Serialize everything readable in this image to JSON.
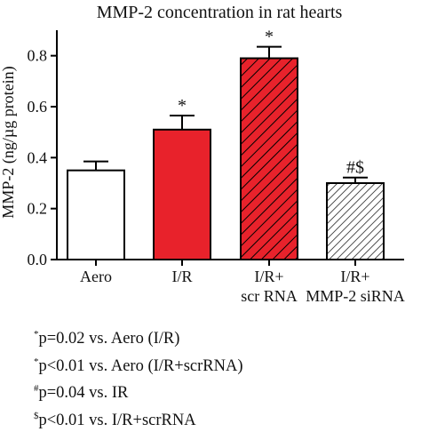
{
  "chart_data": {
    "type": "bar",
    "title": "MMP-2 concentration in rat hearts",
    "ylabel": "MMP-2 (ng/µg protein)",
    "xlabel": "",
    "ylim": [
      0,
      0.9
    ],
    "yticks": [
      "0.0",
      "0.2",
      "0.4",
      "0.6",
      "0.8"
    ],
    "categories": [
      [
        "Aero"
      ],
      [
        "I/R"
      ],
      [
        "I/R+",
        "scr RNA"
      ],
      [
        "I/R+",
        "MMP-2 siRNA"
      ]
    ],
    "values": [
      0.35,
      0.51,
      0.79,
      0.3
    ],
    "errors": [
      0.035,
      0.055,
      0.045,
      0.022
    ],
    "annotations": [
      "",
      "*",
      "*",
      "#$"
    ],
    "bar_styles": [
      {
        "fill": "#ffffff",
        "hatch": false,
        "stroke": "#000000"
      },
      {
        "fill": "#e8222b",
        "hatch": false,
        "stroke": "#000000"
      },
      {
        "fill": "#e8222b",
        "hatch": true,
        "hatch_color": "#000000",
        "stroke": "#000000"
      },
      {
        "fill": "#ffffff",
        "hatch": true,
        "hatch_color": "#000000",
        "stroke": "#000000"
      }
    ],
    "grid": false
  },
  "footnotes": [
    {
      "mark": "*",
      "text": "p=0.02 vs. Aero (I/R)"
    },
    {
      "mark": "*",
      "text": "p<0.01 vs. Aero (I/R+scrRNA)"
    },
    {
      "mark": "#",
      "text": "p=0.04 vs. IR"
    },
    {
      "mark": "$",
      "text": "p<0.01 vs. I/R+scrRNA"
    }
  ]
}
